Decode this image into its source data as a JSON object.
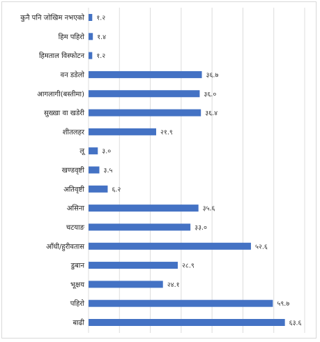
{
  "chart_data": {
    "type": "bar",
    "orientation": "horizontal",
    "categories": [
      "कुनै पनि जोखिम नभएको",
      "हिम पहिरो",
      "हिमताल विस्फोटन",
      "वन डडेलो",
      "आगलागी(बस्तीमा)",
      "सुख्खा वा खडेरी",
      "शीतलहर",
      "लू",
      "खण्डवृष्टी",
      "अतिवृष्टी",
      "असिना",
      "चटयाङ",
      "आँधी/हुरीवतास",
      "डुबान",
      "भूक्षय",
      "पहिरो",
      "बाढी"
    ],
    "values": [
      1.2,
      1.4,
      1.2,
      36.7,
      36.0,
      36.4,
      21.9,
      3.0,
      3.5,
      6.2,
      35.6,
      33.0,
      52.6,
      28.9,
      24.1,
      59.7,
      63.6
    ],
    "value_labels": [
      "१.२",
      "१.४",
      "१.२",
      "३६.७",
      "३६.०",
      "३६.४",
      "२१.९",
      "३.०",
      "३.५",
      "६.२",
      "३५.६",
      "३३.०",
      "५२.६",
      "२८.९",
      "२४.१",
      "५९.७",
      "६३.६"
    ],
    "xlim": [
      0,
      70
    ],
    "grid": true,
    "bar_color": "#4472c4"
  }
}
